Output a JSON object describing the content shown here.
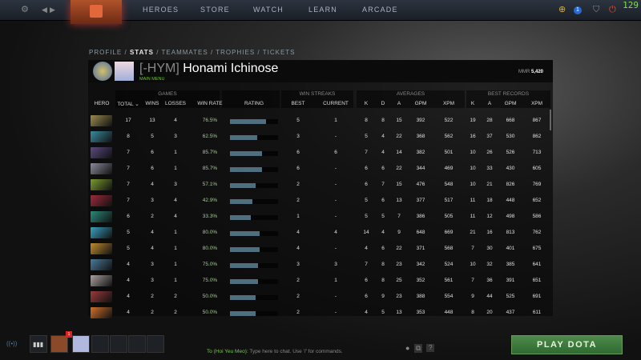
{
  "topbar": {
    "nav": [
      "HEROES",
      "STORE",
      "WATCH",
      "LEARN",
      "ARCADE"
    ],
    "notification_count": "1",
    "fps": "129"
  },
  "subnav": {
    "items": [
      "PROFILE",
      "STATS",
      "TEAMMATES",
      "TROPHIES",
      "TICKETS"
    ],
    "active": "STATS",
    "separator": "/"
  },
  "profile": {
    "tag": "[-HYM]",
    "name": "Honami Ichinose",
    "main_menu": "MAIN MENU",
    "mmr_label": "MMR",
    "mmr": "5,420"
  },
  "groups": {
    "games": "GAMES",
    "win_streaks": "WIN STREAKS",
    "averages": "AVERAGES",
    "best_records": "BEST RECORDS"
  },
  "columns": [
    "HERO",
    "TOTAL ⌄",
    "WINS",
    "LOSSES",
    "WIN RATE",
    "RATING",
    "BEST",
    "CURRENT",
    "K",
    "D",
    "A",
    "GPM",
    "XPM",
    "K",
    "A",
    "GPM",
    "XPM"
  ],
  "rows": [
    {
      "total": "17",
      "wins": "13",
      "losses": "4",
      "winrate": "76.5%",
      "rating": 0.75,
      "best": "5",
      "current": "1",
      "k": "8",
      "d": "8",
      "a": "15",
      "gpm": "392",
      "xpm": "522",
      "bk": "19",
      "ba": "28",
      "bgpm": "668",
      "bxpm": "867",
      "color": "#9a8a50"
    },
    {
      "total": "8",
      "wins": "5",
      "losses": "3",
      "winrate": "62.5%",
      "rating": 0.57,
      "best": "3",
      "current": "-",
      "k": "5",
      "d": "4",
      "a": "22",
      "gpm": "368",
      "xpm": "562",
      "bk": "16",
      "ba": "37",
      "bgpm": "530",
      "bxpm": "862",
      "color": "#3a8aa0"
    },
    {
      "total": "7",
      "wins": "6",
      "losses": "1",
      "winrate": "85.7%",
      "rating": 0.67,
      "best": "6",
      "current": "6",
      "k": "7",
      "d": "4",
      "a": "14",
      "gpm": "382",
      "xpm": "501",
      "bk": "10",
      "ba": "26",
      "bgpm": "526",
      "bxpm": "713",
      "color": "#5a4a80"
    },
    {
      "total": "7",
      "wins": "6",
      "losses": "1",
      "winrate": "85.7%",
      "rating": 0.67,
      "best": "6",
      "current": "-",
      "k": "6",
      "d": "6",
      "a": "22",
      "gpm": "344",
      "xpm": "469",
      "bk": "10",
      "ba": "33",
      "bgpm": "430",
      "bxpm": "605",
      "color": "#8a8a9a"
    },
    {
      "total": "7",
      "wins": "4",
      "losses": "3",
      "winrate": "57.1%",
      "rating": 0.54,
      "best": "2",
      "current": "-",
      "k": "6",
      "d": "7",
      "a": "15",
      "gpm": "476",
      "xpm": "548",
      "bk": "10",
      "ba": "21",
      "bgpm": "826",
      "bxpm": "769",
      "color": "#7a9a30"
    },
    {
      "total": "7",
      "wins": "3",
      "losses": "4",
      "winrate": "42.9%",
      "rating": 0.47,
      "best": "2",
      "current": "-",
      "k": "5",
      "d": "6",
      "a": "13",
      "gpm": "377",
      "xpm": "517",
      "bk": "11",
      "ba": "18",
      "bgpm": "448",
      "bxpm": "652",
      "color": "#a02a3a"
    },
    {
      "total": "6",
      "wins": "2",
      "losses": "4",
      "winrate": "33.3%",
      "rating": 0.43,
      "best": "1",
      "current": "-",
      "k": "5",
      "d": "5",
      "a": "7",
      "gpm": "386",
      "xpm": "505",
      "bk": "11",
      "ba": "12",
      "bgpm": "498",
      "bxpm": "586",
      "color": "#2a8a7a"
    },
    {
      "total": "5",
      "wins": "4",
      "losses": "1",
      "winrate": "80.0%",
      "rating": 0.62,
      "best": "4",
      "current": "4",
      "k": "14",
      "d": "4",
      "a": "9",
      "gpm": "648",
      "xpm": "669",
      "bk": "21",
      "ba": "16",
      "bgpm": "813",
      "bxpm": "762",
      "color": "#3aa0c0"
    },
    {
      "total": "5",
      "wins": "4",
      "losses": "1",
      "winrate": "80.0%",
      "rating": 0.62,
      "best": "4",
      "current": "-",
      "k": "4",
      "d": "6",
      "a": "22",
      "gpm": "371",
      "xpm": "568",
      "bk": "7",
      "ba": "30",
      "bgpm": "401",
      "bxpm": "675",
      "color": "#c08a30"
    },
    {
      "total": "4",
      "wins": "3",
      "losses": "1",
      "winrate": "75.0%",
      "rating": 0.58,
      "best": "3",
      "current": "3",
      "k": "7",
      "d": "8",
      "a": "23",
      "gpm": "342",
      "xpm": "524",
      "bk": "10",
      "ba": "32",
      "bgpm": "385",
      "bxpm": "641",
      "color": "#4a7a9a"
    },
    {
      "total": "4",
      "wins": "3",
      "losses": "1",
      "winrate": "75.0%",
      "rating": 0.58,
      "best": "2",
      "current": "1",
      "k": "6",
      "d": "8",
      "a": "25",
      "gpm": "352",
      "xpm": "561",
      "bk": "7",
      "ba": "36",
      "bgpm": "391",
      "bxpm": "651",
      "color": "#aaa0a0"
    },
    {
      "total": "4",
      "wins": "2",
      "losses": "2",
      "winrate": "50.0%",
      "rating": 0.53,
      "best": "2",
      "current": "-",
      "k": "6",
      "d": "9",
      "a": "23",
      "gpm": "388",
      "xpm": "554",
      "bk": "9",
      "ba": "44",
      "bgpm": "525",
      "bxpm": "691",
      "color": "#9a3a3a"
    },
    {
      "total": "4",
      "wins": "2",
      "losses": "2",
      "winrate": "50.0%",
      "rating": 0.53,
      "best": "2",
      "current": "-",
      "k": "4",
      "d": "5",
      "a": "13",
      "gpm": "353",
      "xpm": "448",
      "bk": "8",
      "ba": "20",
      "bgpm": "437",
      "bxpm": "611",
      "color": "#d0702a"
    }
  ],
  "bottom": {
    "party_badge": "1",
    "chat_target": "To (Hoi Yeu Meo):",
    "chat_placeholder": "Type here to chat. Use '/' for commands.",
    "help": "?",
    "play": "PLAY DOTA"
  }
}
